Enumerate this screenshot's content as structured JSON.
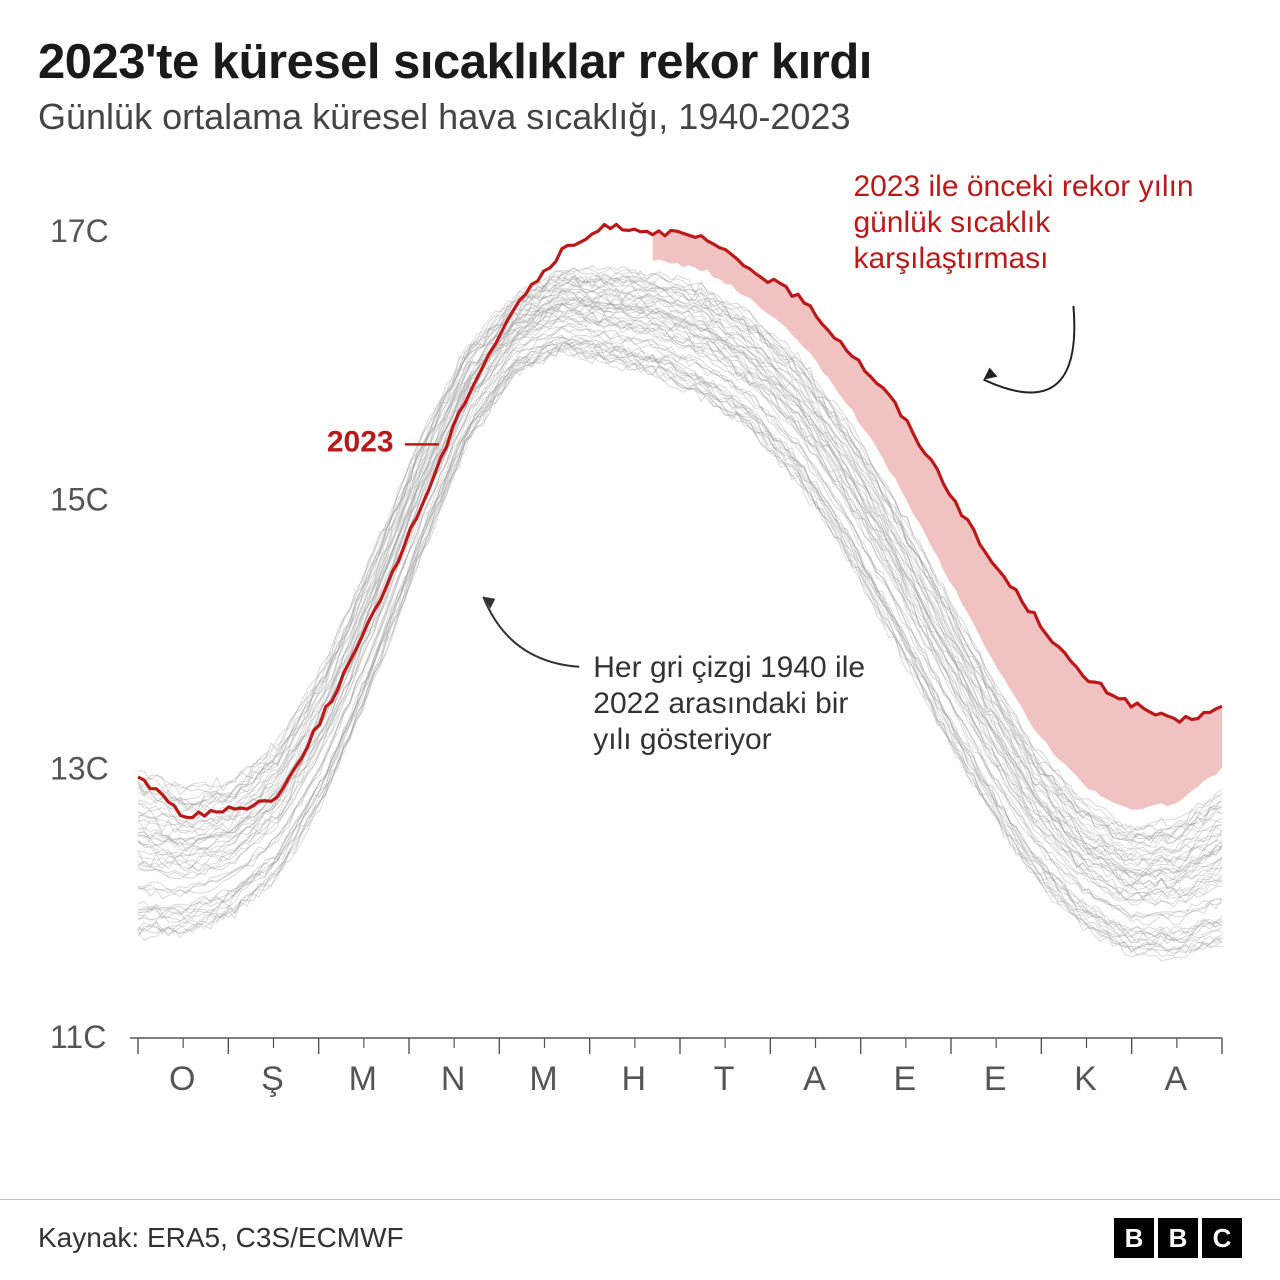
{
  "title": "2023'te küresel sıcaklıklar rekor kırdı",
  "subtitle": "Günlük ortalama küresel hava sıcaklığı, 1940-2023",
  "source_label": "Kaynak: ERA5, C3S/ECMWF",
  "bbc": [
    "B",
    "B",
    "C"
  ],
  "chart": {
    "type": "line",
    "background_color": "#ffffff",
    "grid_color": "#e0e0e0",
    "axis_color": "#555555",
    "tick_color": "#555555",
    "grey_line_color": "#9a9a9a",
    "grey_line_opacity": 0.38,
    "grey_line_width": 1.0,
    "series_2023_color": "#bb1919",
    "series_2023_width": 3.2,
    "fill_color": "#e9a1a1",
    "fill_opacity": 0.65,
    "ylim": [
      11,
      17.4
    ],
    "y_ticks": [
      {
        "v": 11,
        "label": "11C"
      },
      {
        "v": 13,
        "label": "13C"
      },
      {
        "v": 15,
        "label": "15C"
      },
      {
        "v": 17,
        "label": "17C"
      }
    ],
    "x_months": [
      "O",
      "Ş",
      "M",
      "N",
      "M",
      "H",
      "T",
      "A",
      "E",
      "E",
      "K",
      "A"
    ],
    "n_grey": 55,
    "grey_envelope_low": [
      11.45,
      11.5,
      11.65,
      11.95,
      12.55,
      13.4,
      14.35,
      15.25,
      15.8,
      15.95,
      15.85,
      15.75,
      15.55,
      15.3,
      14.9,
      14.35,
      13.7,
      13.05,
      12.45,
      11.95,
      11.6,
      11.4,
      11.35,
      11.4
    ],
    "grey_envelope_high": [
      13.15,
      13.0,
      13.05,
      13.35,
      13.95,
      14.75,
      15.6,
      16.25,
      16.6,
      16.8,
      16.8,
      16.78,
      16.7,
      16.5,
      16.2,
      15.75,
      15.2,
      14.55,
      13.9,
      13.3,
      12.9,
      12.7,
      12.75,
      13.0
    ],
    "prev_record": [
      13.05,
      12.9,
      12.92,
      13.2,
      13.8,
      14.55,
      15.35,
      16.05,
      16.45,
      16.75,
      16.8,
      16.78,
      16.72,
      16.5,
      16.2,
      15.75,
      15.2,
      14.55,
      13.9,
      13.3,
      12.9,
      12.7,
      12.75,
      13.0
    ],
    "series_2023": [
      12.95,
      12.65,
      12.7,
      12.8,
      13.45,
      14.15,
      14.95,
      15.8,
      16.45,
      16.85,
      17.05,
      17.0,
      16.95,
      16.72,
      16.52,
      16.15,
      15.75,
      15.2,
      14.6,
      14.15,
      13.7,
      13.5,
      13.35,
      13.45
    ],
    "label_2023": "2023",
    "annot_grey_lines": [
      "Her gri çizgi 1940 ile",
      "2022 arasındaki bir",
      "yılı gösteriyor"
    ],
    "annot_red_lines": [
      "2023 ile önceki rekor yılın",
      "günlük sıcaklık",
      "karşılaştırması"
    ]
  }
}
